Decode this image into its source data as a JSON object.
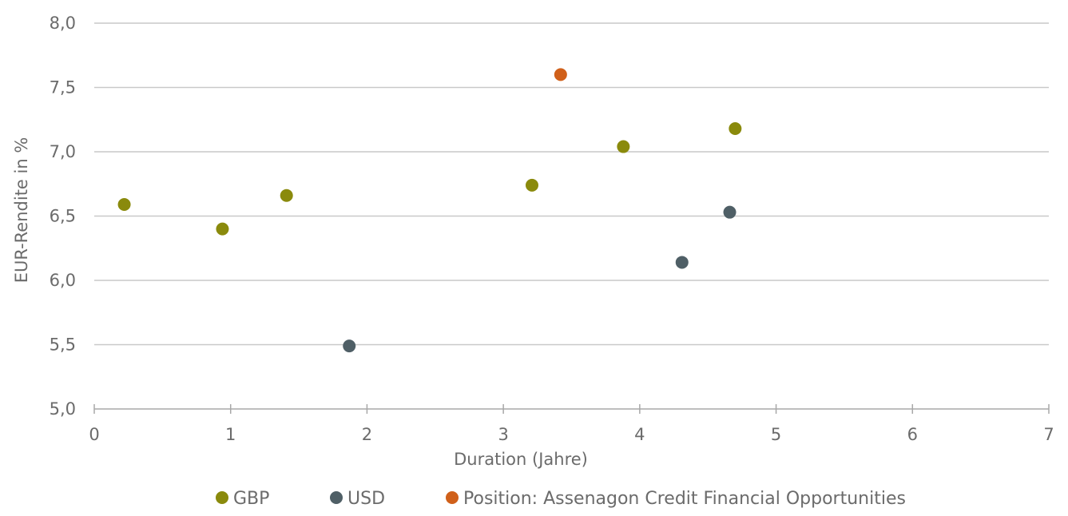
{
  "chart_data": {
    "type": "scatter",
    "title": "",
    "xlabel": "Duration (Jahre)",
    "ylabel": "EUR-Rendite in %",
    "xlim": [
      0,
      7
    ],
    "ylim": [
      5.0,
      8.0
    ],
    "x_ticks": [
      0,
      1,
      2,
      3,
      4,
      5,
      6,
      7
    ],
    "x_tick_labels": [
      "0",
      "1",
      "2",
      "3",
      "4",
      "5",
      "6",
      "7"
    ],
    "y_ticks": [
      5.0,
      5.5,
      6.0,
      6.5,
      7.0,
      7.5,
      8.0
    ],
    "y_tick_labels": [
      "5,0",
      "5,5",
      "6,0",
      "6,5",
      "7,0",
      "7,5",
      "8,0"
    ],
    "grid": "horizontal",
    "legend_position": "bottom",
    "series": [
      {
        "name": "GBP",
        "color": "#8a8a0c",
        "points": [
          {
            "x": 0.22,
            "y": 6.59
          },
          {
            "x": 0.94,
            "y": 6.4
          },
          {
            "x": 1.41,
            "y": 6.66
          },
          {
            "x": 3.21,
            "y": 6.74
          },
          {
            "x": 3.88,
            "y": 7.04
          },
          {
            "x": 4.7,
            "y": 7.18
          }
        ]
      },
      {
        "name": "USD",
        "color": "#4f5f66",
        "points": [
          {
            "x": 1.87,
            "y": 5.49
          },
          {
            "x": 4.31,
            "y": 6.14
          },
          {
            "x": 4.66,
            "y": 6.53
          }
        ]
      },
      {
        "name": "Position: Assenagon Credit Financial Opportunities",
        "color": "#d0601a",
        "points": [
          {
            "x": 3.42,
            "y": 7.6
          }
        ]
      }
    ]
  }
}
